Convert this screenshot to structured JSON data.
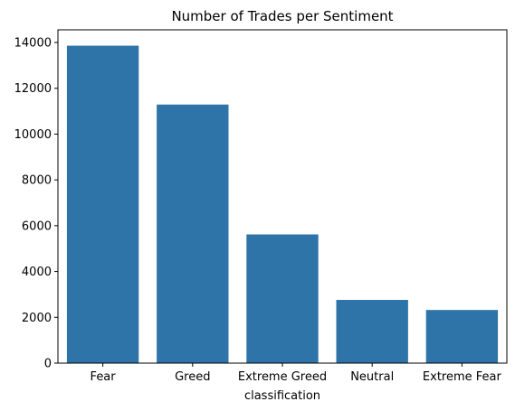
{
  "chart_data": {
    "type": "bar",
    "title": "Number of Trades per Sentiment",
    "xlabel": "classification",
    "ylabel": "",
    "categories": [
      "Fear",
      "Greed",
      "Extreme Greed",
      "Neutral",
      "Extreme Fear"
    ],
    "values": [
      13860,
      11290,
      5620,
      2760,
      2320
    ],
    "ylim": [
      0,
      14553
    ],
    "yticks": [
      0,
      2000,
      4000,
      6000,
      8000,
      10000,
      12000,
      14000
    ],
    "bar_color": "#2e74a8",
    "grid": false,
    "legend": "none"
  }
}
